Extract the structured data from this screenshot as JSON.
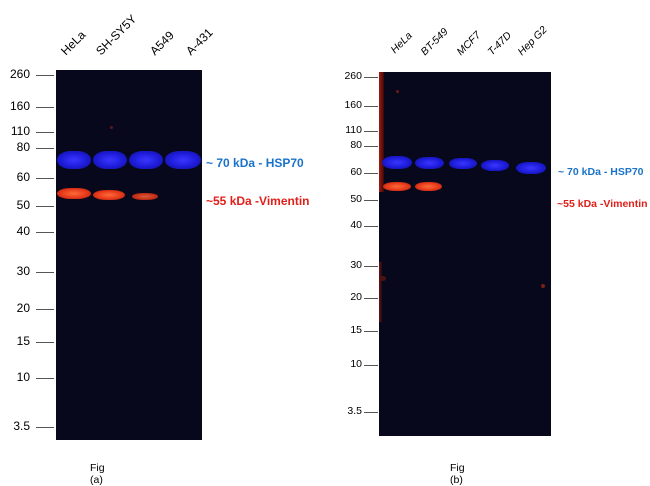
{
  "panel_a": {
    "lanes": [
      "HeLa",
      "SH-SY5Y",
      "A549",
      "A-431"
    ],
    "markers": [
      "260",
      "160",
      "110",
      "80",
      "60",
      "50",
      "40",
      "30",
      "20",
      "15",
      "10",
      "3.5"
    ],
    "annotations": {
      "hsp70": "~ 70 kDa - HSP70",
      "vimentin": "~55 kDa -Vimentin"
    },
    "caption": "Fig (a)"
  },
  "panel_b": {
    "lanes": [
      "HeLa",
      "BT-549",
      "MCF7",
      "T-47D",
      "Hep G2"
    ],
    "markers": [
      "260",
      "160",
      "110",
      "80",
      "60",
      "50",
      "40",
      "30",
      "20",
      "15",
      "10",
      "3.5"
    ],
    "annotations": {
      "hsp70": "~ 70 kDa - HSP70",
      "vimentin": "~55 kDa -Vimentin"
    },
    "caption": "Fig (b)"
  },
  "colors": {
    "hsp70_band": "#2a26f0",
    "vimentin_band": "#e8401c",
    "hsp70_text": "#1a73c9",
    "vimentin_text": "#e0201a",
    "membrane": "#07081c"
  }
}
